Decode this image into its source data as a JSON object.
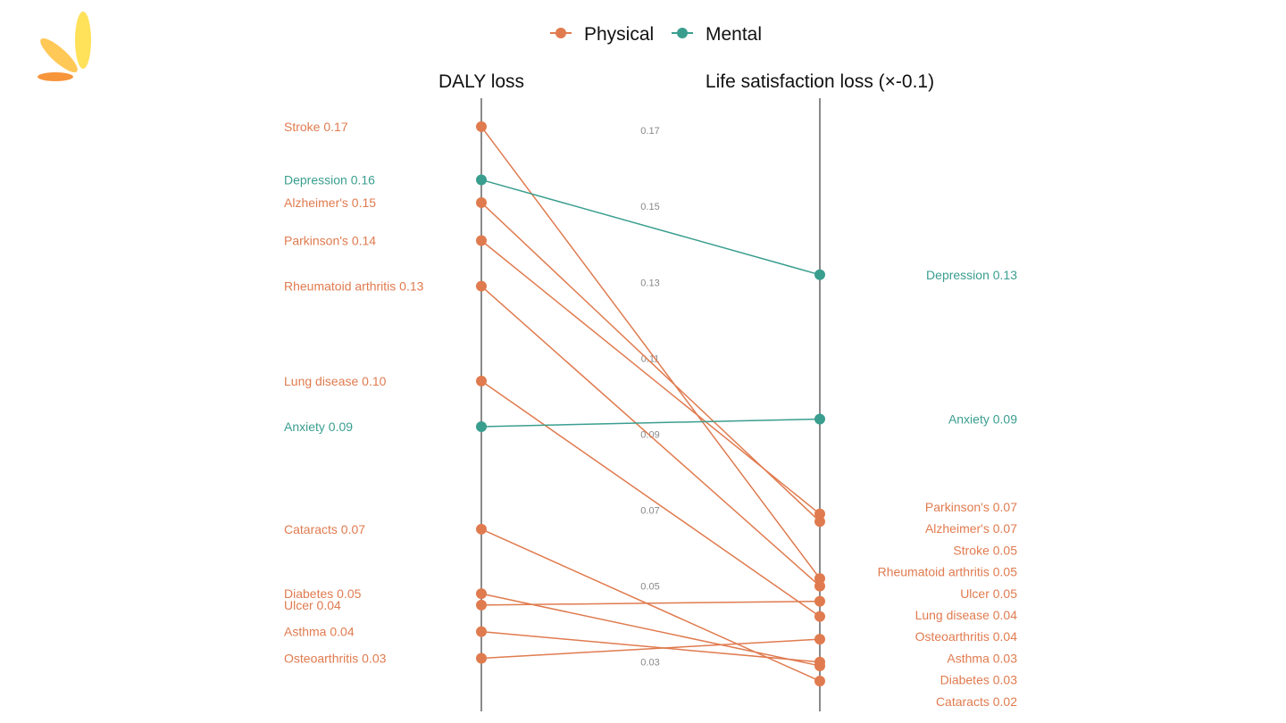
{
  "chart_data": {
    "type": "slope",
    "axes": [
      "DALY loss",
      "Life satisfaction loss (×-0.1)"
    ],
    "ylim": [
      0.017,
      0.1785
    ],
    "ticks": [
      "0.17",
      "0.15",
      "0.13",
      "0.11",
      "0.09",
      "0.07",
      "0.05",
      "0.03"
    ],
    "legend": {
      "position": "top",
      "entries": [
        {
          "name": "Physical",
          "color": "#E07B4F"
        },
        {
          "name": "Mental",
          "color": "#3A9E8F"
        }
      ]
    },
    "grid": false,
    "items": [
      {
        "name": "Stroke",
        "group": "Physical",
        "left": 0.171,
        "right": 0.052,
        "left_label": "Stroke 0.17",
        "right_label": "Stroke 0.05"
      },
      {
        "name": "Depression",
        "group": "Mental",
        "left": 0.157,
        "right": 0.132,
        "left_label": "Depression 0.16",
        "right_label": "Depression 0.13"
      },
      {
        "name": "Alzheimer's",
        "group": "Physical",
        "left": 0.151,
        "right": 0.067,
        "left_label": "Alzheimer's 0.15",
        "right_label": "Alzheimer's 0.07"
      },
      {
        "name": "Parkinson's",
        "group": "Physical",
        "left": 0.141,
        "right": 0.069,
        "left_label": "Parkinson's 0.14",
        "right_label": "Parkinson's 0.07"
      },
      {
        "name": "Rheumatoid arthritis",
        "group": "Physical",
        "left": 0.129,
        "right": 0.05,
        "left_label": "Rheumatoid arthritis 0.13",
        "right_label": "Rheumatoid arthritis 0.05"
      },
      {
        "name": "Lung disease",
        "group": "Physical",
        "left": 0.104,
        "right": 0.042,
        "left_label": "Lung disease 0.10",
        "right_label": "Lung disease 0.04"
      },
      {
        "name": "Anxiety",
        "group": "Mental",
        "left": 0.092,
        "right": 0.094,
        "left_label": "Anxiety 0.09",
        "right_label": "Anxiety 0.09"
      },
      {
        "name": "Cataracts",
        "group": "Physical",
        "left": 0.065,
        "right": 0.025,
        "left_label": "Cataracts 0.07",
        "right_label": "Cataracts 0.02"
      },
      {
        "name": "Diabetes",
        "group": "Physical",
        "left": 0.048,
        "right": 0.029,
        "left_label": "Diabetes 0.05",
        "right_label": "Diabetes 0.03"
      },
      {
        "name": "Ulcer",
        "group": "Physical",
        "left": 0.045,
        "right": 0.046,
        "left_label": "Ulcer 0.04",
        "right_label": "Ulcer 0.05"
      },
      {
        "name": "Asthma",
        "group": "Physical",
        "left": 0.038,
        "right": 0.03,
        "left_label": "Asthma 0.04",
        "right_label": "Asthma 0.03"
      },
      {
        "name": "Osteoarthritis",
        "group": "Physical",
        "left": 0.031,
        "right": 0.036,
        "left_label": "Osteoarthritis 0.03",
        "right_label": "Osteoarthritis 0.04"
      }
    ],
    "right_label_order": [
      "Parkinson's",
      "Alzheimer's",
      "Stroke",
      "Rheumatoid arthritis",
      "Ulcer",
      "Lung disease",
      "Osteoarthritis",
      "Asthma",
      "Diabetes",
      "Cataracts"
    ]
  }
}
